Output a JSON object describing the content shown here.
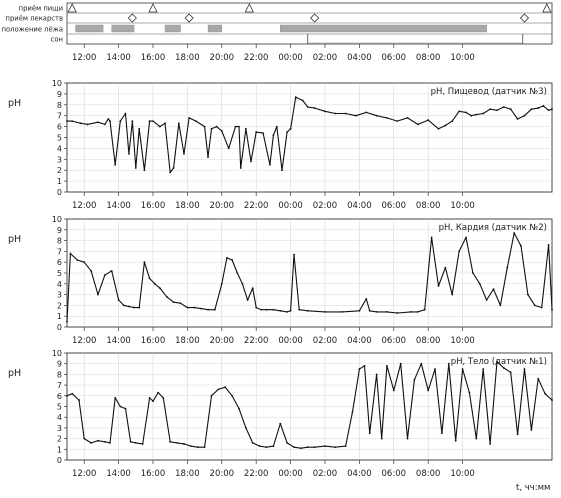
{
  "event_tracks": {
    "labels": [
      "приём пищи",
      "приём лекарств",
      "положение лёжа",
      "сон"
    ],
    "meals": [
      0.3,
      5.0,
      10.6,
      27.9
    ],
    "medications": [
      3.8,
      7.1,
      14.4,
      26.6
    ],
    "lying": [
      [
        0.5,
        2.1
      ],
      [
        2.6,
        3.9
      ],
      [
        5.7,
        6.6
      ],
      [
        8.2,
        9.0
      ],
      [
        12.4,
        24.4
      ]
    ],
    "sleep": [
      [
        14.0,
        26.5
      ]
    ]
  },
  "time_axis": {
    "ticks": [
      "12:00",
      "14:00",
      "16:00",
      "18:00",
      "20:00",
      "22:00",
      "00:00",
      "02:00",
      "04:00",
      "06:00",
      "08:00",
      "10:00"
    ],
    "unit_label": "t, чч:мм"
  },
  "chart_data": [
    {
      "type": "line",
      "title": "pH, Пищевод (датчик №3)",
      "ylabel": "pH",
      "xlabel": "",
      "ylim": [
        0,
        10
      ],
      "y_ticks": [
        "0",
        "1",
        "2",
        "3",
        "4",
        "5",
        "6",
        "7",
        "8",
        "9",
        "10"
      ],
      "grid": true,
      "x": [
        0.0,
        0.3,
        0.8,
        1.2,
        1.8,
        2.2,
        2.4,
        2.5,
        2.8,
        3.1,
        3.4,
        3.6,
        3.8,
        4.0,
        4.2,
        4.5,
        4.8,
        5.0,
        5.4,
        5.7,
        6.0,
        6.2,
        6.5,
        6.8,
        7.1,
        7.5,
        8.0,
        8.2,
        8.4,
        8.7,
        9.0,
        9.4,
        9.8,
        10.0,
        10.1,
        10.4,
        10.7,
        11.0,
        11.4,
        11.8,
        12.0,
        12.2,
        12.5,
        12.8,
        13.0,
        13.3,
        13.7,
        14.0,
        14.4,
        15.0,
        15.6,
        16.2,
        16.8,
        17.4,
        18.0,
        18.6,
        19.2,
        19.8,
        20.4,
        21.0,
        21.6,
        22.0,
        22.4,
        22.8,
        23.2,
        23.5,
        23.8,
        24.2,
        24.6,
        25.0,
        25.4,
        25.8,
        26.2,
        26.6,
        27.0,
        27.4,
        27.7,
        28.0,
        28.2
      ],
      "values": [
        6.5,
        6.5,
        6.3,
        6.2,
        6.4,
        6.2,
        6.7,
        6.5,
        2.5,
        6.5,
        7.2,
        3.5,
        6.5,
        2.2,
        5.8,
        2.0,
        6.5,
        6.5,
        6.0,
        6.3,
        1.8,
        2.2,
        6.3,
        3.5,
        6.8,
        6.5,
        6.0,
        3.2,
        5.8,
        6.0,
        5.6,
        4.0,
        6.0,
        6.0,
        2.2,
        5.8,
        2.8,
        5.5,
        5.4,
        2.5,
        5.2,
        6.0,
        2.0,
        5.5,
        5.8,
        8.7,
        8.4,
        7.8,
        7.7,
        7.4,
        7.2,
        7.2,
        7.0,
        7.3,
        7.0,
        6.8,
        6.5,
        6.8,
        6.2,
        6.6,
        5.8,
        6.1,
        6.5,
        7.4,
        7.3,
        7.0,
        7.1,
        7.2,
        7.6,
        7.5,
        7.8,
        7.6,
        6.7,
        7.0,
        7.6,
        7.7,
        7.9,
        7.5,
        7.6
      ]
    },
    {
      "type": "line",
      "title": "pH, Кардия (датчик №2)",
      "ylabel": "pH",
      "xlabel": "",
      "ylim": [
        0,
        10
      ],
      "y_ticks": [
        "0",
        "1",
        "2",
        "3",
        "4",
        "5",
        "6",
        "7",
        "8",
        "9",
        "10"
      ],
      "grid": true,
      "x": [
        0.0,
        0.2,
        0.6,
        1.0,
        1.4,
        1.8,
        2.2,
        2.6,
        3.0,
        3.3,
        3.6,
        3.9,
        4.2,
        4.5,
        4.8,
        5.1,
        5.4,
        5.8,
        6.2,
        6.6,
        7.0,
        7.4,
        7.8,
        8.2,
        8.6,
        9.0,
        9.3,
        9.6,
        9.9,
        10.2,
        10.5,
        10.8,
        11.0,
        11.3,
        11.6,
        12.0,
        12.4,
        12.8,
        13.0,
        13.2,
        13.5,
        14.0,
        15.0,
        16.0,
        17.0,
        17.4,
        17.6,
        18.0,
        18.6,
        19.2,
        20.0,
        20.4,
        20.8,
        21.2,
        21.6,
        22.0,
        22.4,
        22.8,
        23.2,
        23.6,
        24.0,
        24.4,
        24.8,
        25.2,
        25.6,
        26.0,
        26.4,
        26.8,
        27.2,
        27.6,
        28.0,
        28.2
      ],
      "values": [
        0.5,
        6.8,
        6.2,
        6.0,
        5.2,
        3.0,
        4.8,
        5.2,
        2.5,
        2.0,
        1.9,
        1.8,
        1.8,
        6.0,
        4.5,
        4.0,
        3.6,
        2.8,
        2.3,
        2.2,
        1.8,
        1.8,
        1.7,
        1.6,
        1.6,
        4.0,
        6.4,
        6.2,
        5.0,
        4.0,
        2.5,
        3.6,
        1.8,
        1.6,
        1.6,
        1.6,
        1.5,
        1.4,
        1.5,
        6.7,
        1.6,
        1.5,
        1.4,
        1.4,
        1.5,
        2.6,
        1.5,
        1.4,
        1.4,
        1.3,
        1.4,
        1.4,
        1.6,
        8.3,
        3.8,
        5.5,
        3.0,
        7.0,
        8.3,
        5.0,
        4.0,
        2.5,
        3.5,
        2.0,
        5.5,
        8.7,
        7.5,
        3.0,
        2.0,
        1.8,
        7.6,
        1.6
      ]
    },
    {
      "type": "line",
      "title": "pH, Тело (датчик №1)",
      "ylabel": "pH",
      "xlabel": "t, чч:мм",
      "ylim": [
        0,
        10
      ],
      "y_ticks": [
        "0",
        "1",
        "2",
        "3",
        "4",
        "5",
        "6",
        "7",
        "8",
        "9",
        "10"
      ],
      "grid": true,
      "x": [
        0.0,
        0.3,
        0.7,
        1.0,
        1.4,
        1.8,
        2.2,
        2.5,
        2.8,
        3.1,
        3.4,
        3.7,
        4.0,
        4.4,
        4.8,
        5.0,
        5.3,
        5.6,
        6.0,
        6.4,
        6.8,
        7.2,
        7.6,
        8.0,
        8.4,
        8.8,
        9.2,
        9.6,
        10.0,
        10.4,
        10.8,
        11.2,
        11.6,
        12.0,
        12.4,
        12.8,
        13.2,
        13.6,
        14.0,
        14.4,
        15.0,
        15.6,
        16.2,
        16.6,
        17.0,
        17.3,
        17.6,
        18.0,
        18.3,
        18.6,
        19.0,
        19.4,
        19.8,
        20.2,
        20.6,
        21.0,
        21.4,
        21.8,
        22.2,
        22.6,
        23.0,
        23.4,
        23.8,
        24.2,
        24.6,
        25.0,
        25.4,
        25.8,
        26.2,
        26.6,
        27.0,
        27.4,
        27.8,
        28.2
      ],
      "values": [
        6.0,
        6.2,
        5.6,
        2.0,
        1.6,
        1.8,
        1.7,
        1.6,
        5.8,
        5.0,
        4.8,
        1.7,
        1.6,
        1.5,
        5.8,
        5.5,
        6.3,
        5.8,
        1.7,
        1.6,
        1.5,
        1.3,
        1.2,
        1.2,
        6.0,
        6.6,
        6.8,
        6.0,
        4.8,
        3.0,
        1.6,
        1.3,
        1.2,
        1.3,
        3.4,
        1.6,
        1.2,
        1.1,
        1.2,
        1.2,
        1.3,
        1.2,
        1.3,
        4.5,
        8.5,
        8.8,
        2.5,
        8.0,
        2.0,
        8.8,
        6.5,
        9.0,
        2.0,
        7.5,
        9.0,
        6.5,
        8.5,
        2.5,
        9.0,
        1.8,
        8.5,
        6.3,
        2.0,
        8.5,
        1.5,
        9.2,
        8.6,
        8.2,
        2.4,
        8.5,
        2.8,
        7.6,
        6.2,
        5.6
      ]
    }
  ]
}
